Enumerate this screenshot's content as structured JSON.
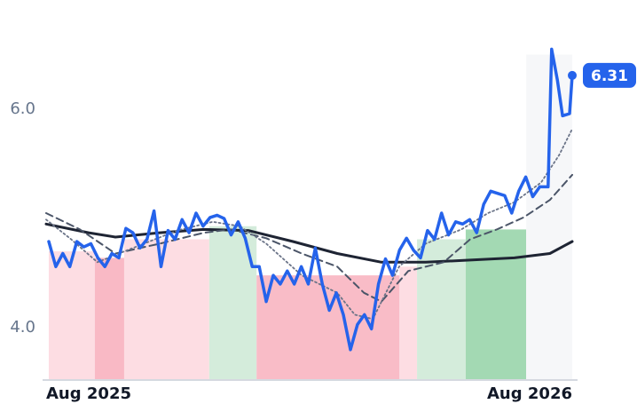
{
  "chart_data": {
    "type": "line",
    "xlim": [
      0,
      12
    ],
    "ylim": [
      3.53,
      7.0
    ],
    "xticks": [
      {
        "value": 0,
        "label": "Aug 2025"
      },
      {
        "value": 12,
        "label": "Aug 2026"
      }
    ],
    "yticks": [
      {
        "value": 4,
        "label": "4.0"
      },
      {
        "value": 6,
        "label": "6.0"
      }
    ],
    "grid": false,
    "bands": [
      {
        "start": 0.06,
        "end": 1.11,
        "value": 4.7,
        "color": "#fddde3"
      },
      {
        "start": 1.11,
        "end": 1.78,
        "value": 4.64,
        "color": "#f9b9c5"
      },
      {
        "start": 1.78,
        "end": 3.72,
        "value": 4.81,
        "color": "#fddde3"
      },
      {
        "start": 3.72,
        "end": 4.8,
        "value": 4.93,
        "color": "#d4ecdb"
      },
      {
        "start": 4.8,
        "end": 8.06,
        "value": 4.48,
        "color": "#f9bcc7"
      },
      {
        "start": 8.06,
        "end": 8.46,
        "value": 4.56,
        "color": "#fddde3"
      },
      {
        "start": 8.46,
        "end": 9.57,
        "value": 4.81,
        "color": "#d4ecdb"
      },
      {
        "start": 9.57,
        "end": 10.95,
        "value": 4.9,
        "color": "#a3d9b3"
      },
      {
        "start": 10.95,
        "end": 12.0,
        "value": 6.5,
        "color": "#f6f7f9"
      }
    ],
    "series": [
      {
        "color": "#2563eb",
        "style": "solid",
        "width": 3.5,
        "x": [
          0.06,
          0.22,
          0.38,
          0.54,
          0.7,
          0.86,
          1.02,
          1.18,
          1.34,
          1.5,
          1.66,
          1.82,
          1.98,
          2.14,
          2.3,
          2.46,
          2.62,
          2.78,
          2.94,
          3.1,
          3.26,
          3.42,
          3.58,
          3.74,
          3.9,
          4.06,
          4.22,
          4.38,
          4.54,
          4.7,
          4.86,
          5.02,
          5.18,
          5.34,
          5.5,
          5.66,
          5.82,
          5.98,
          6.14,
          6.3,
          6.46,
          6.62,
          6.78,
          6.94,
          7.1,
          7.26,
          7.42,
          7.58,
          7.74,
          7.9,
          8.06,
          8.22,
          8.38,
          8.54,
          8.7,
          8.86,
          9.02,
          9.18,
          9.34,
          9.5,
          9.66,
          9.82,
          9.98,
          10.14,
          10.3,
          10.46,
          10.62,
          10.78,
          10.94,
          11.1,
          11.26,
          11.45,
          11.53,
          11.66,
          11.78,
          11.94,
          12.0
        ],
        "values": [
          4.79,
          4.56,
          4.68,
          4.56,
          4.79,
          4.74,
          4.77,
          4.64,
          4.56,
          4.68,
          4.64,
          4.91,
          4.87,
          4.73,
          4.81,
          5.07,
          4.56,
          4.89,
          4.81,
          4.99,
          4.87,
          5.05,
          4.93,
          5.01,
          5.03,
          5.0,
          4.85,
          4.97,
          4.82,
          4.56,
          4.56,
          4.24,
          4.48,
          4.4,
          4.52,
          4.4,
          4.56,
          4.4,
          4.73,
          4.4,
          4.16,
          4.32,
          4.12,
          3.8,
          4.03,
          4.12,
          3.99,
          4.4,
          4.63,
          4.48,
          4.71,
          4.82,
          4.71,
          4.64,
          4.89,
          4.81,
          5.05,
          4.85,
          4.97,
          4.95,
          4.99,
          4.87,
          5.13,
          5.25,
          5.23,
          5.21,
          5.05,
          5.25,
          5.38,
          5.2,
          5.29,
          5.29,
          6.55,
          6.27,
          5.94,
          5.96,
          6.31
        ]
      },
      {
        "color": "#1e2433",
        "style": "solid",
        "width": 3,
        "x": [
          0,
          0.97,
          1.58,
          2.59,
          3.6,
          4.61,
          5.63,
          6.64,
          7.65,
          8.66,
          9.67,
          10.68,
          11.49,
          12.0
        ],
        "values": [
          4.95,
          4.87,
          4.83,
          4.87,
          4.9,
          4.89,
          4.79,
          4.68,
          4.6,
          4.6,
          4.62,
          4.64,
          4.68,
          4.79
        ]
      },
      {
        "color": "#4b5568",
        "style": "dashed",
        "width": 2,
        "x": [
          0,
          0.77,
          1.58,
          2.59,
          3.6,
          4.21,
          5.02,
          5.83,
          6.64,
          7.25,
          7.65,
          8.26,
          9.07,
          9.67,
          10.28,
          10.89,
          11.49,
          12.0
        ],
        "values": [
          5.05,
          4.9,
          4.68,
          4.77,
          4.87,
          4.9,
          4.82,
          4.68,
          4.56,
          4.32,
          4.24,
          4.52,
          4.6,
          4.81,
          4.9,
          5.01,
          5.17,
          5.4
        ]
      },
      {
        "color": "#6b7488",
        "style": "dotted",
        "width": 1.8,
        "x": [
          0,
          0.57,
          1.17,
          1.98,
          2.99,
          3.8,
          4.41,
          5.02,
          5.83,
          6.64,
          7.04,
          7.45,
          8.05,
          8.66,
          9.47,
          10.08,
          10.68,
          11.29,
          11.7,
          12.0
        ],
        "values": [
          4.99,
          4.81,
          4.6,
          4.73,
          4.89,
          4.97,
          4.93,
          4.77,
          4.48,
          4.32,
          4.12,
          4.08,
          4.56,
          4.77,
          4.9,
          5.05,
          5.15,
          5.33,
          5.58,
          5.82
        ]
      }
    ]
  }
}
